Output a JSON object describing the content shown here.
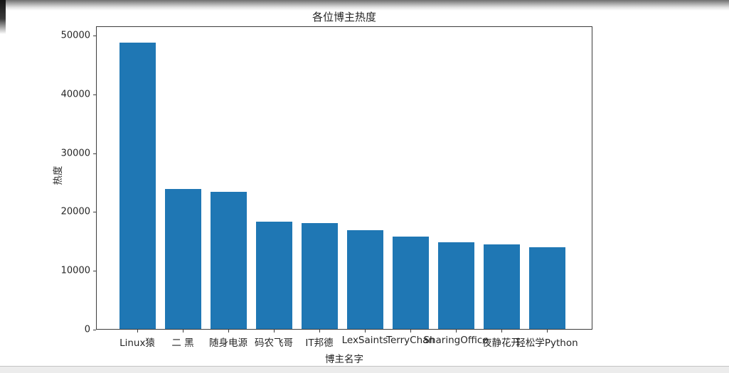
{
  "chart_data": {
    "type": "bar",
    "title": "各位博主热度",
    "xlabel": "博主名字",
    "ylabel": "热度",
    "categories": [
      "Linux猿",
      "二 黑",
      "随身电源",
      "码农飞哥",
      "IT邦德",
      "LexSaints",
      "TerryChan",
      "SharingOffice",
      "夜静花开",
      "轻松学Python"
    ],
    "values": [
      48700,
      23850,
      23300,
      18300,
      17950,
      16850,
      15700,
      14800,
      14350,
      13950
    ],
    "yticks": [
      0,
      10000,
      20000,
      30000,
      40000,
      50000
    ],
    "ylim": [
      0,
      51600
    ],
    "grid": false,
    "legend": null,
    "bar_color": "#1f77b4",
    "axis_color": "#3c3c3c"
  }
}
